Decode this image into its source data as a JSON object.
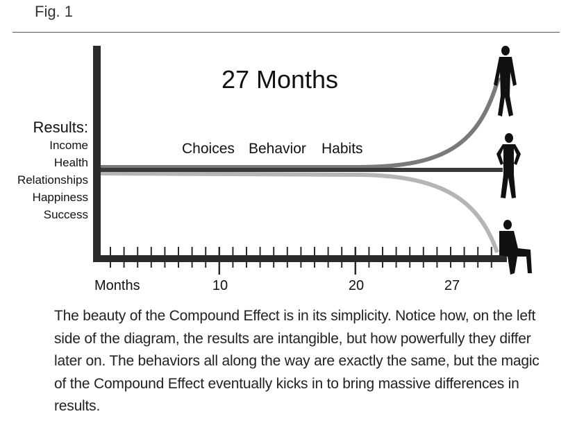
{
  "figure": {
    "label": "Fig. 1",
    "title": "27 Months",
    "results_heading": "Results:",
    "results_items": [
      "Income",
      "Health",
      "Relationships",
      "Happiness",
      "Success"
    ],
    "phrases": [
      "Choices",
      "Behavior",
      "Habits"
    ],
    "axis": {
      "x_label": "Months",
      "tick_labels": [
        "10",
        "20",
        "27"
      ]
    },
    "colors": {
      "axis": "#2b2b2b",
      "upper_curve": "#7a7a7a",
      "middle_line": "#3a3a3a",
      "lower_curve": "#b5b5b5",
      "silhouette": "#111111"
    },
    "icons": [
      "standing-man-icon",
      "hands-on-hips-man-icon",
      "seated-man-icon"
    ]
  },
  "caption": "The beauty of the Compound Effect is in its simplicity. Notice how, on the left side of the diagram, the results are intangible, but how powerfully they differ later on. The behaviors all along the way are exactly the same, but the magic of the Compound Effect eventually kicks in to bring massive differences in results."
}
